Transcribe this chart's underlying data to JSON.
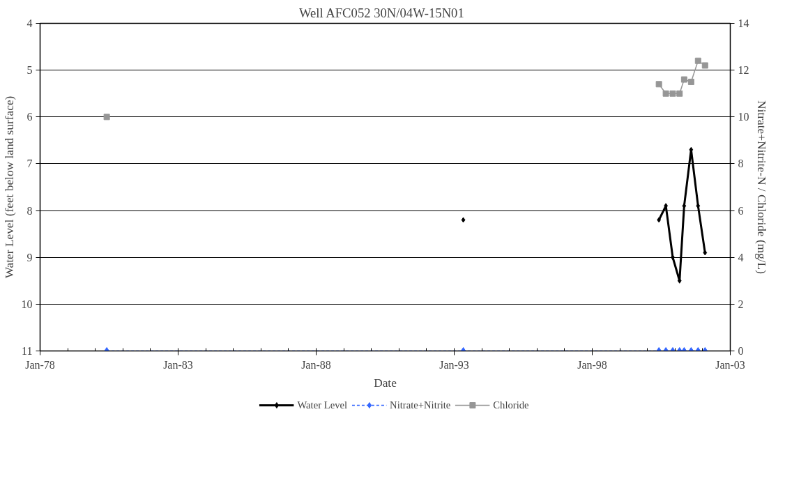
{
  "chart_data": {
    "type": "line",
    "title": "Well AFC052   30N/04W-15N01",
    "xlabel": "Date",
    "ylabel": "Water Level (feet below land surface)",
    "y2label": "Nitrate+Nitrite-N / Chloride (mg/L)",
    "xlim": [
      "1978-01-01",
      "2003-01-01"
    ],
    "xticks": [
      {
        "value": "1978-01-01",
        "label": "Jan-78"
      },
      {
        "value": "1983-01-01",
        "label": "Jan-83"
      },
      {
        "value": "1988-01-01",
        "label": "Jan-88"
      },
      {
        "value": "1993-01-01",
        "label": "Jan-93"
      },
      {
        "value": "1998-01-01",
        "label": "Jan-98"
      },
      {
        "value": "2003-01-01",
        "label": "Jan-03"
      }
    ],
    "ylim": [
      11,
      4
    ],
    "yticks": [
      4,
      5,
      6,
      7,
      8,
      9,
      10,
      11
    ],
    "y2lim": [
      0,
      14
    ],
    "y2ticks": [
      0,
      2,
      4,
      6,
      8,
      10,
      12,
      14
    ],
    "grid": "y",
    "legend": "bottom",
    "series": [
      {
        "name": "Water Level",
        "color": "#000000",
        "marker": "diamond",
        "line_style": "solid",
        "x": [
          "2000-06",
          "2000-09",
          "2000-12",
          "2001-03",
          "2001-05",
          "2001-08",
          "2001-11",
          "2002-02"
        ],
        "values": [
          8.2,
          7.9,
          9.0,
          9.5,
          7.9,
          6.7,
          7.9,
          8.9
        ]
      },
      {
        "type": "scatter",
        "color": "#000000",
        "marker": "diamond",
        "x": [
          "1993-05"
        ],
        "values": [
          8.2
        ]
      },
      {
        "name": "Nitrate+Nitrite",
        "axis": "y2",
        "color": "#3366ff",
        "marker": "diamond",
        "line_style": "dashed",
        "x": [
          "1980-06",
          "1993-05",
          "2000-06",
          "2000-09",
          "2000-12",
          "2001-03",
          "2001-05",
          "2001-08",
          "2001-11",
          "2002-02"
        ],
        "values": [
          0,
          0,
          0,
          0,
          0,
          0,
          0,
          0,
          0,
          0
        ]
      },
      {
        "name": "Chloride",
        "axis": "y2",
        "color": "#969696",
        "marker": "square",
        "line_style": "solid",
        "x": [
          "1980-06",
          "1993-05",
          "2000-06",
          "2000-09",
          "2000-12",
          "2001-03",
          "2001-05",
          "2001-08",
          "2001-11",
          "2002-02"
        ],
        "values": [
          10,
          null,
          11.4,
          11.0,
          11.0,
          11.0,
          11.6,
          11.5,
          12.4,
          12.2
        ]
      }
    ]
  }
}
